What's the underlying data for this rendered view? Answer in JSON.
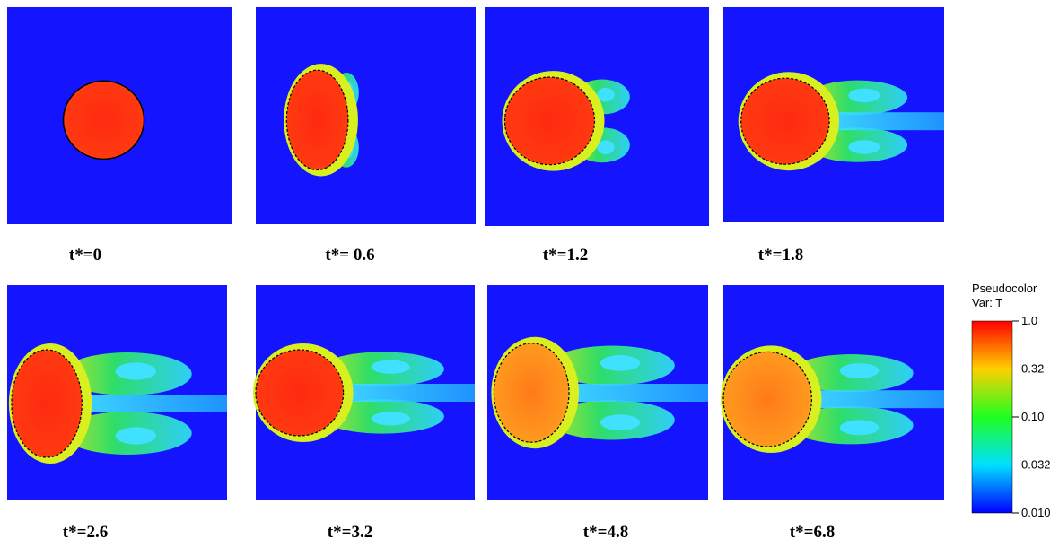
{
  "panels": [
    {
      "label": "t*=0"
    },
    {
      "label": "t*= 0.6"
    },
    {
      "label": "t*=1.2"
    },
    {
      "label": "t*=1.8"
    },
    {
      "label": "t*=2.6"
    },
    {
      "label": "t*=3.2"
    },
    {
      "label": "t*=4.8"
    },
    {
      "label": "t*=6.8"
    }
  ],
  "colorbar": {
    "title": "Pseudocolor",
    "subtitle": "Var: T",
    "ticks": [
      "1.0",
      "0.32",
      "0.10",
      "0.032",
      "0.010"
    ]
  }
}
